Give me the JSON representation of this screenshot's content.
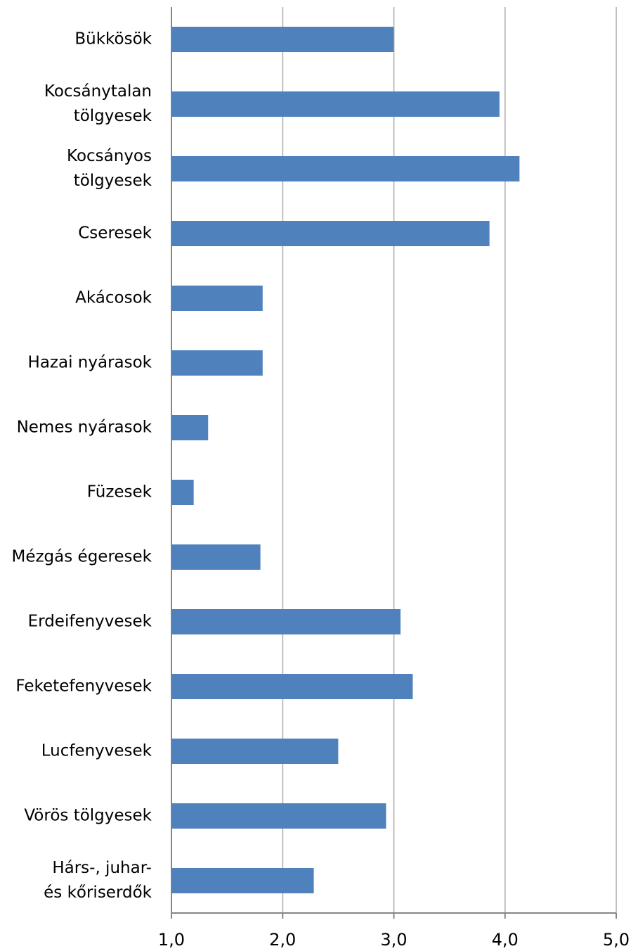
{
  "chart_data": {
    "type": "barh",
    "categories": [
      "Bükkösök",
      "Kocsánytalan\ntölgyesek",
      "Kocsányos\ntölgyesek",
      "Cseresek",
      "Akácosok",
      "Hazai nyárasok",
      "Nemes nyárasok",
      "Füzesek",
      "Mézgás égeresek",
      "Erdeifenyvesek",
      "Feketefenyvesek",
      "Lucfenyvesek",
      "Vörös tölgyesek",
      "Hárs-, juhar-\nés kőriserdők"
    ],
    "values": [
      3.0,
      3.95,
      4.13,
      3.86,
      1.82,
      1.82,
      1.33,
      1.2,
      1.8,
      3.06,
      3.17,
      2.5,
      2.93,
      2.28
    ],
    "color": "#4f81bd",
    "xlim": [
      1,
      5
    ],
    "xticks": [
      {
        "value": 1,
        "label": "1,0"
      },
      {
        "value": 2,
        "label": "2,0"
      },
      {
        "value": 3,
        "label": "3,0"
      },
      {
        "value": 4,
        "label": "4,0"
      },
      {
        "value": 5,
        "label": "5,0"
      }
    ],
    "grid": true
  }
}
